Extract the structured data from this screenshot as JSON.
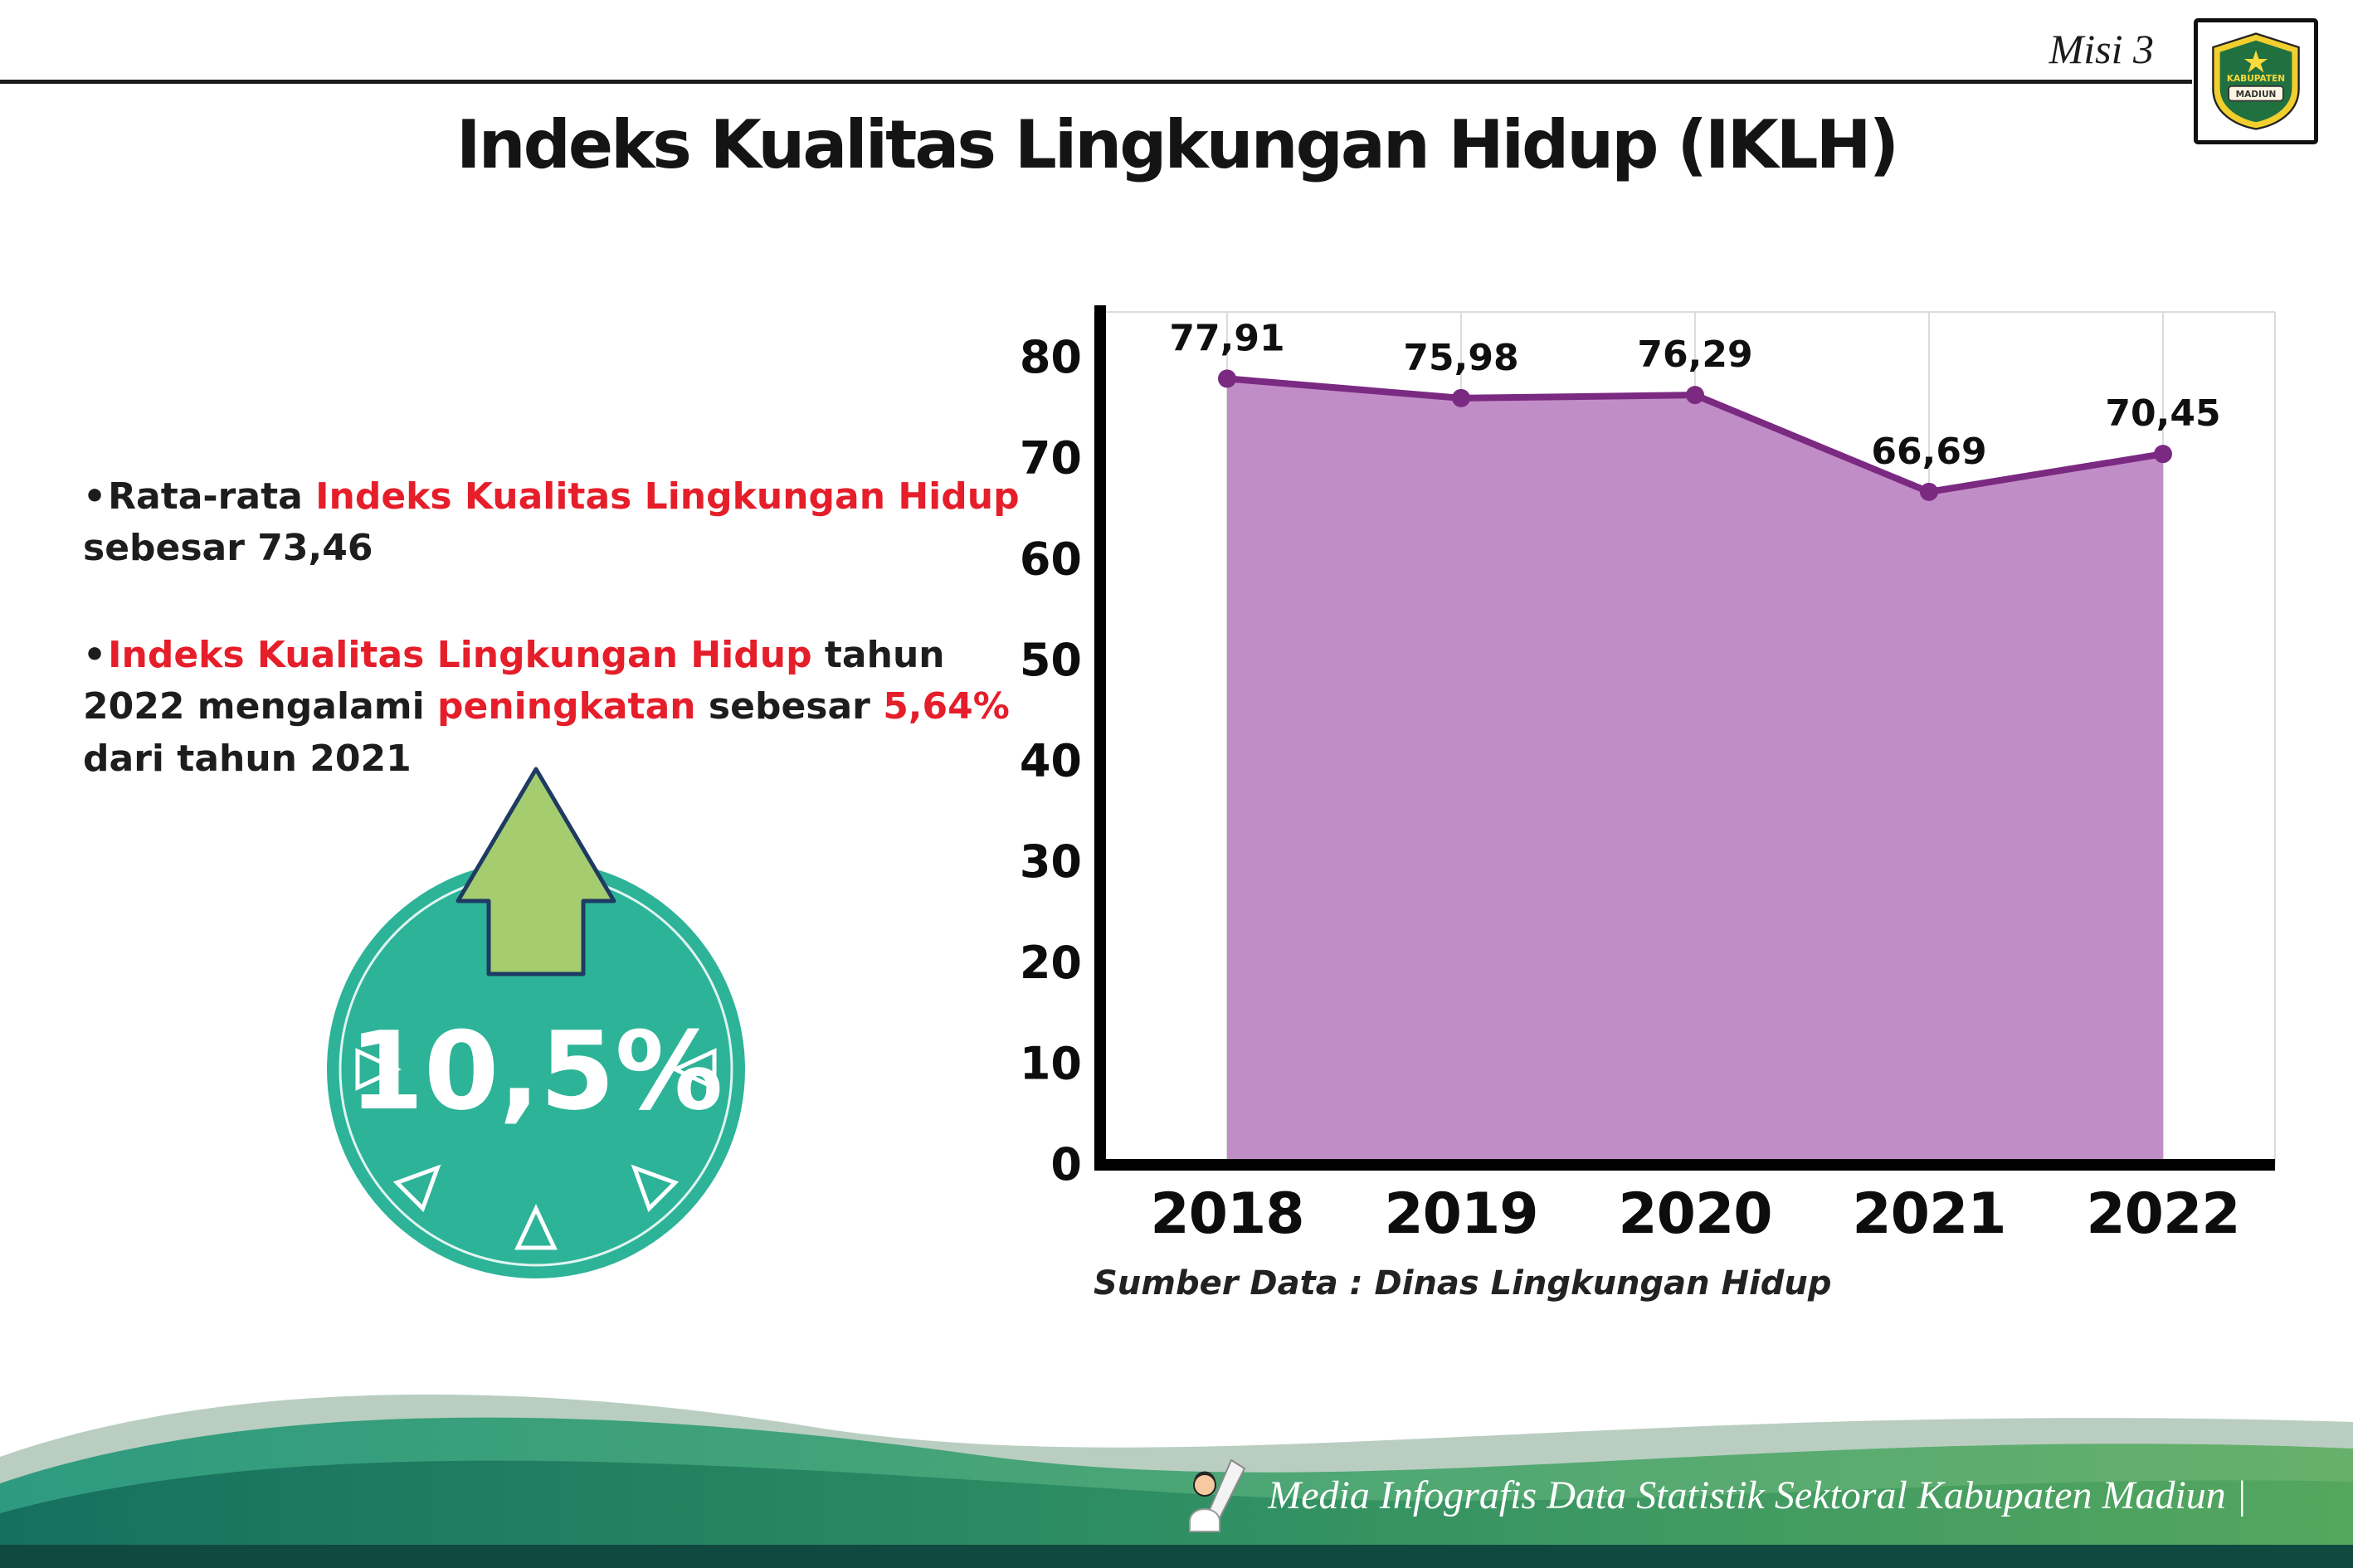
{
  "header": {
    "misi_label": "Misi 3",
    "title": "Indeks Kualitas Lingkungan Hidup (IKLH)",
    "logo": {
      "line1": "KABUPATEN",
      "line2": "MADIUN"
    }
  },
  "bullets": {
    "marker": "•",
    "item1": {
      "parts": [
        {
          "text": "Rata-rata ",
          "red": false
        },
        {
          "text": "Indeks Kualitas Lingkungan Hidup",
          "red": true
        },
        {
          "text": " sebesar 73,46",
          "red": false
        }
      ]
    },
    "item2": {
      "parts": [
        {
          "text": "Indeks Kualitas Lingkungan Hidup",
          "red": true
        },
        {
          "text": " tahun 2022 mengalami ",
          "red": false
        },
        {
          "text": "peningkatan",
          "red": true
        },
        {
          "text": " sebesar ",
          "red": false
        },
        {
          "text": "5,64%",
          "red": true
        },
        {
          "text": " dari tahun 2021",
          "red": false
        }
      ]
    }
  },
  "badge": {
    "value": "10,5%"
  },
  "chart_data": {
    "type": "area",
    "title": "Indeks Kualitas Lingkungan Hidup (IKLH)",
    "categories": [
      "2018",
      "2019",
      "2020",
      "2021",
      "2022"
    ],
    "values": [
      77.91,
      75.98,
      76.29,
      66.69,
      70.45
    ],
    "value_labels": [
      "77,91",
      "75,98",
      "76,29",
      "66,69",
      "70,45"
    ],
    "xlabel": "",
    "ylabel": "",
    "ylim": [
      0,
      80
    ],
    "ytick_step": 10,
    "grid": true,
    "legend": "none",
    "fill_color": "#c18dc6",
    "line_color": "#7b2a82",
    "source": "Sumber Data : Dinas Lingkungan Hidup"
  },
  "footer": {
    "credit": "Media Infografis Data Statistik Sektoral Kabupaten Madiun |"
  },
  "colors": {
    "accent_red": "#e51e2a",
    "badge_teal": "#2db398",
    "arrow_green": "#a5cd70",
    "area_fill": "#c18dc6",
    "line_purple": "#7b2a82",
    "footer_dark_teal": "#16705f",
    "footer_green": "#55a75f"
  }
}
